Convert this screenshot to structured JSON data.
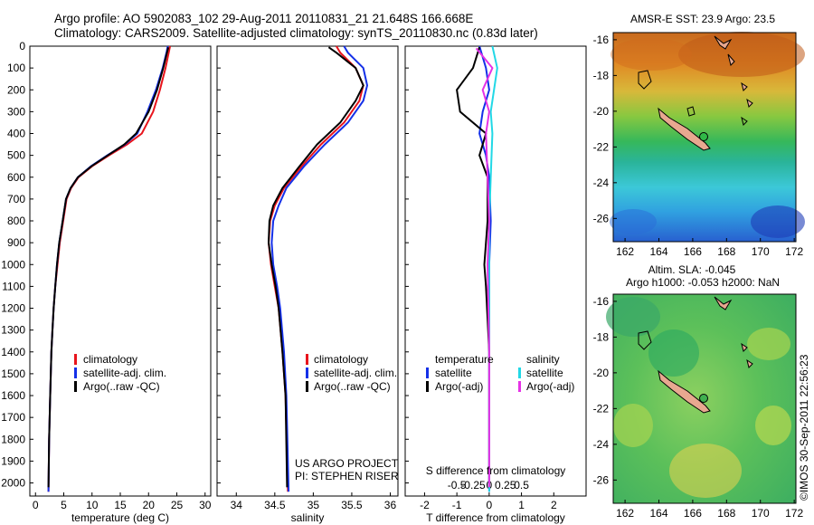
{
  "header": {
    "line1": "Argo profile: AO 5902083_102 29-Aug-2011 20110831_21 21.648S 166.668E",
    "line2": "Climatology: CARS2009. Satellite-adjusted climatology: synTS_20110830.nc (0.83d later)"
  },
  "depth_ticks": [
    "0",
    "100",
    "200",
    "300",
    "400",
    "500",
    "600",
    "700",
    "800",
    "900",
    "1000",
    "1100",
    "1200",
    "1300",
    "1400",
    "1500",
    "1600",
    "1700",
    "1800",
    "1900",
    "2000"
  ],
  "panel_temp": {
    "xlabel": "temperature (deg C)",
    "xticks": [
      "0",
      "5",
      "10",
      "15",
      "20",
      "25",
      "30"
    ],
    "legend": [
      "climatology",
      "satellite-adj. clim.",
      "Argo(..raw -QC)"
    ]
  },
  "panel_sal": {
    "xlabel": "salinity",
    "xticks": [
      "34",
      "34.5",
      "35",
      "35.5",
      "36"
    ],
    "legend": [
      "climatology",
      "satellite-adj. clim.",
      "Argo(..raw -QC)"
    ],
    "project_line1": "US ARGO PROJECT",
    "project_line2": "PI: STEPHEN RISER"
  },
  "panel_diff": {
    "top_label": "S difference from climatology",
    "top_ticks": [
      "-0.5",
      "-0.25",
      "0",
      "0.25",
      "0.5"
    ],
    "xlabel": "T difference from climatology",
    "xticks": [
      "-2",
      "-1",
      "0",
      "1",
      "2"
    ],
    "legend_t_title": "temperature",
    "legend_t": [
      "satellite",
      "Argo(-adj)"
    ],
    "legend_s_title": "salinity",
    "legend_s": [
      "satellite",
      "Argo(-adj)"
    ]
  },
  "map_sst": {
    "title": "AMSR-E SST: 23.9 Argo: 23.5",
    "yticks": [
      "-16",
      "-18",
      "-20",
      "-22",
      "-24",
      "-26"
    ],
    "xticks": [
      "162",
      "164",
      "166",
      "168",
      "170",
      "172"
    ]
  },
  "map_sla": {
    "title1": "Altim. SLA: -0.045",
    "title2": "Argo h1000: -0.053 h2000: NaN",
    "yticks": [
      "-16",
      "-18",
      "-20",
      "-22",
      "-24",
      "-26"
    ],
    "xticks": [
      "162",
      "164",
      "166",
      "168",
      "170",
      "172"
    ]
  },
  "footer_credit": "©IMOS 30-Sep-2011 22:56:23",
  "colors": {
    "climatology": "#e8141c",
    "satellite": "#1430e8",
    "argo": "#000000",
    "sal_satellite": "#22d8e6",
    "sal_argo": "#e632e6",
    "land": "#e8a890"
  },
  "chart_data": [
    {
      "type": "line",
      "xlabel": "temperature (deg C)",
      "ylabel": "",
      "xlim": [
        -1,
        31
      ],
      "ylim": [
        2060,
        0
      ],
      "series": [
        {
          "name": "climatology",
          "color": "#e8141c",
          "x": [
            23.8,
            23.6,
            23.0,
            22.0,
            20.8,
            18.8,
            16.2,
            13.0,
            10.0,
            7.6,
            6.3,
            5.5,
            4.9,
            4.3,
            3.9,
            3.5,
            3.2,
            3.0,
            2.8,
            2.6,
            2.4,
            2.3
          ],
          "y": [
            0,
            25,
            100,
            200,
            300,
            400,
            450,
            500,
            550,
            600,
            650,
            700,
            800,
            900,
            1000,
            1100,
            1200,
            1300,
            1400,
            1600,
            1800,
            2040
          ]
        },
        {
          "name": "satellite-adj. clim.",
          "color": "#1430e8",
          "x": [
            23.4,
            23.2,
            22.5,
            21.3,
            19.8,
            18.0,
            15.8,
            12.7,
            9.8,
            7.5,
            6.2,
            5.4,
            4.8,
            4.2,
            3.8,
            3.5,
            3.2,
            3.0,
            2.8,
            2.6,
            2.4,
            2.3
          ],
          "y": [
            0,
            25,
            100,
            200,
            300,
            400,
            450,
            500,
            550,
            600,
            650,
            700,
            800,
            900,
            1000,
            1100,
            1200,
            1300,
            1400,
            1600,
            1800,
            2040
          ]
        },
        {
          "name": "Argo(..raw -QC)",
          "color": "#000000",
          "x": [
            23.5,
            23.3,
            22.6,
            21.5,
            20.0,
            17.8,
            15.7,
            12.8,
            9.9,
            7.5,
            6.2,
            5.4,
            4.8,
            4.2,
            3.8,
            3.5,
            3.2,
            3.0,
            2.8,
            2.6,
            2.4,
            2.3
          ],
          "y": [
            5,
            25,
            100,
            200,
            300,
            400,
            450,
            500,
            550,
            600,
            650,
            700,
            800,
            900,
            1000,
            1100,
            1200,
            1300,
            1400,
            1600,
            1800,
            2020
          ]
        }
      ]
    },
    {
      "type": "line",
      "xlabel": "salinity",
      "ylabel": "",
      "xlim": [
        33.75,
        36.1
      ],
      "ylim": [
        2060,
        0
      ],
      "series": [
        {
          "name": "climatology",
          "color": "#e8141c",
          "x": [
            35.3,
            35.35,
            35.55,
            35.65,
            35.6,
            35.4,
            35.1,
            34.85,
            34.62,
            34.5,
            34.44,
            34.42,
            34.45,
            34.5,
            34.55,
            34.6,
            34.64,
            34.67
          ],
          "y": [
            0,
            30,
            100,
            180,
            250,
            350,
            450,
            550,
            650,
            730,
            800,
            900,
            1000,
            1100,
            1200,
            1400,
            1600,
            2040
          ]
        },
        {
          "name": "satellite-adj. clim.",
          "color": "#1430e8",
          "x": [
            35.4,
            35.45,
            35.65,
            35.7,
            35.65,
            35.45,
            35.15,
            34.88,
            34.65,
            34.55,
            34.48,
            34.46,
            34.48,
            34.53,
            34.57,
            34.62,
            34.65,
            34.68
          ],
          "y": [
            0,
            30,
            100,
            180,
            250,
            350,
            450,
            550,
            650,
            730,
            800,
            900,
            1000,
            1100,
            1200,
            1400,
            1600,
            2040
          ]
        },
        {
          "name": "Argo(..raw -QC)",
          "color": "#000000",
          "x": [
            35.2,
            35.3,
            35.55,
            35.65,
            35.55,
            35.35,
            35.05,
            34.82,
            34.6,
            34.48,
            34.43,
            34.42,
            34.46,
            34.51,
            34.55,
            34.6,
            34.64,
            34.66
          ],
          "y": [
            5,
            30,
            100,
            180,
            250,
            350,
            450,
            550,
            650,
            730,
            800,
            900,
            1000,
            1100,
            1200,
            1400,
            1600,
            2020
          ]
        }
      ]
    },
    {
      "type": "line",
      "xlabel": "T difference from climatology",
      "ylabel": "",
      "xlim": [
        -2.6,
        3.0
      ],
      "ylim": [
        2060,
        0
      ],
      "series": [
        {
          "name": "temperature satellite",
          "color": "#1430e8",
          "x": [
            -0.3,
            -0.1,
            0.0,
            -0.2,
            -0.3,
            -0.1,
            0.0,
            0.05,
            0.0,
            0.0,
            0.0,
            0.0
          ],
          "y": [
            0,
            100,
            200,
            300,
            400,
            500,
            600,
            800,
            1000,
            1400,
            1800,
            2040
          ]
        },
        {
          "name": "temperature Argo(-adj)",
          "color": "#000000",
          "x": [
            -0.3,
            -0.5,
            -1.0,
            -0.9,
            -0.1,
            -0.3,
            -0.05,
            -0.05,
            -0.15,
            -0.1,
            0.0,
            0.0
          ],
          "y": [
            5,
            100,
            200,
            300,
            400,
            500,
            600,
            800,
            1000,
            1100,
            1400,
            2020
          ]
        },
        {
          "name": "salinity satellite",
          "color": "#22d8e6",
          "x": [
            0.1,
            0.25,
            0.15,
            0.05,
            0.1,
            0.05,
            0.0,
            0.0,
            0.0,
            0.0
          ],
          "y": [
            0,
            100,
            200,
            300,
            400,
            600,
            800,
            1200,
            1600,
            2040
          ]
        },
        {
          "name": "salinity Argo(-adj)",
          "color": "#e632e6",
          "x": [
            -0.4,
            0.1,
            -0.2,
            0.0,
            -0.1,
            -0.05,
            0.0,
            -0.05,
            0.0,
            0.0
          ],
          "y": [
            10,
            100,
            200,
            300,
            400,
            600,
            800,
            1000,
            1400,
            2020
          ]
        }
      ]
    }
  ]
}
